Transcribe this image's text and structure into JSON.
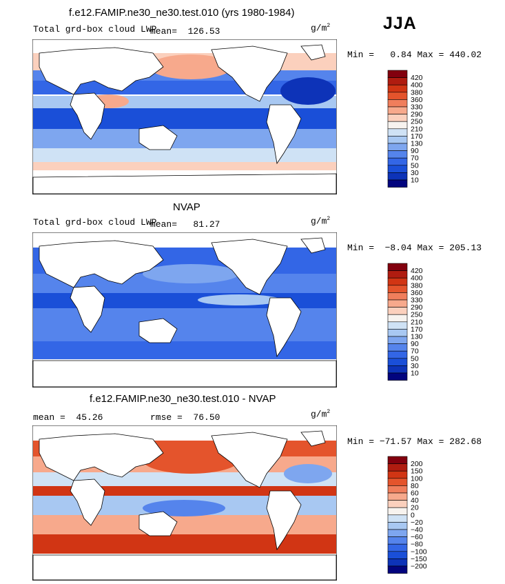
{
  "season": "JJA",
  "panels": [
    {
      "id": "model",
      "title": "f.e12.FAMIP.ne30_ne30.test.010 (yrs 1980-1984)",
      "left_label": "Total grd-box cloud LWP",
      "mean_label": "mean=",
      "mean_value": "126.53",
      "rmse_label": "",
      "rmse_value": "",
      "units_base": "g/m",
      "units_exp": "2",
      "min_label": "Min =",
      "min_value": "0.84",
      "max_label": "Max =",
      "max_value": "440.02",
      "colorbar": {
        "colors": [
          "#82000e",
          "#b01c10",
          "#d13514",
          "#e4542c",
          "#f07e5c",
          "#f7a98c",
          "#fbd0bd",
          "#f7f3ef",
          "#cfe2f5",
          "#a8c8f2",
          "#7ea6ef",
          "#5584ec",
          "#3366e6",
          "#1a4fd8",
          "#0d33b8",
          "#02047e"
        ],
        "labels": [
          "420",
          "400",
          "380",
          "360",
          "330",
          "290",
          "250",
          "210",
          "170",
          "130",
          "90",
          "70",
          "50",
          "30",
          "10"
        ]
      }
    },
    {
      "id": "obs",
      "title": "NVAP",
      "left_label": "Total grd-box cloud LWP",
      "mean_label": "mean=",
      "mean_value": "81.27",
      "rmse_label": "",
      "rmse_value": "",
      "units_base": "g/m",
      "units_exp": "2",
      "min_label": "Min =",
      "min_value": "−8.04",
      "max_label": "Max =",
      "max_value": "205.13",
      "colorbar": {
        "colors": [
          "#82000e",
          "#b01c10",
          "#d13514",
          "#e4542c",
          "#f07e5c",
          "#f7a98c",
          "#fbd0bd",
          "#f7f3ef",
          "#cfe2f5",
          "#a8c8f2",
          "#7ea6ef",
          "#5584ec",
          "#3366e6",
          "#1a4fd8",
          "#0d33b8",
          "#02047e"
        ],
        "labels": [
          "420",
          "400",
          "380",
          "360",
          "330",
          "290",
          "250",
          "210",
          "170",
          "130",
          "90",
          "70",
          "50",
          "30",
          "10"
        ]
      }
    },
    {
      "id": "diff",
      "title": "f.e12.FAMIP.ne30_ne30.test.010 - NVAP",
      "left_label": "",
      "mean_label": "mean =",
      "mean_value": "45.26",
      "rmse_label": "rmse =",
      "rmse_value": "76.50",
      "units_base": "g/m",
      "units_exp": "2",
      "min_label": "Min =",
      "min_value": "−71.57",
      "max_label": "Max =",
      "max_value": "282.68",
      "colorbar": {
        "colors": [
          "#82000e",
          "#b01c10",
          "#d13514",
          "#e4542c",
          "#f07e5c",
          "#f7a98c",
          "#fbd0bd",
          "#f7f3ef",
          "#cfe2f5",
          "#a8c8f2",
          "#7ea6ef",
          "#5584ec",
          "#3366e6",
          "#1a4fd8",
          "#0d33b8",
          "#02047e"
        ],
        "labels": [
          "200",
          "150",
          "100",
          "80",
          "60",
          "40",
          "20",
          "0",
          "−20",
          "−40",
          "−60",
          "−80",
          "−100",
          "−150",
          "−200"
        ]
      }
    }
  ]
}
